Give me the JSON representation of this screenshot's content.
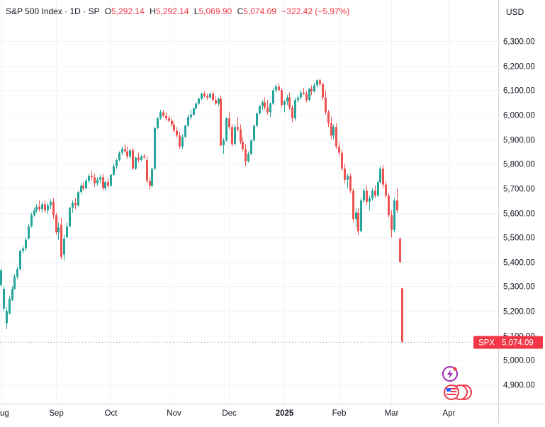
{
  "legend": {
    "symbol": "S&P 500 Index · 1D · SP",
    "o_label": "O",
    "o": "5,292.14",
    "h_label": "H",
    "h": "5,292.14",
    "l_label": "L",
    "l": "5,069.90",
    "c_label": "C",
    "c": "5,074.09",
    "change": "−322.42 (−5.97%)"
  },
  "currency": "USD",
  "price_badge": {
    "ticker": "SPX",
    "value": "5,074.09"
  },
  "icons": [
    "lightning-icon",
    "us-flag-events-icon"
  ],
  "colors": {
    "up": "#26a69a",
    "down": "#ef5350",
    "badge": "#f23645",
    "grid": "#f0f3fa"
  },
  "chart_data": {
    "type": "candlestick",
    "ylim": [
      4800,
      6360
    ],
    "y_ticks": [
      {
        "value": 6300,
        "label": "6,300.00"
      },
      {
        "value": 6200,
        "label": "6,200.00"
      },
      {
        "value": 6100,
        "label": "6,100.00"
      },
      {
        "value": 6000,
        "label": "6,000.00"
      },
      {
        "value": 5900,
        "label": "5,900.00"
      },
      {
        "value": 5800,
        "label": "5,800.00"
      },
      {
        "value": 5700,
        "label": "5,700.00"
      },
      {
        "value": 5600,
        "label": "5,600.00"
      },
      {
        "value": 5500,
        "label": "5,500.00"
      },
      {
        "value": 5400,
        "label": "5,400.00"
      },
      {
        "value": 5300,
        "label": "5,300.00"
      },
      {
        "value": 5200,
        "label": "5,200.00"
      },
      {
        "value": 5100,
        "label": "5,100.00"
      },
      {
        "value": 5000,
        "label": "5,000.00"
      },
      {
        "value": 4900,
        "label": "4,900.00"
      }
    ],
    "x_ticks": [
      {
        "label": "ug",
        "index": 0,
        "bold": false
      },
      {
        "label": "Sep",
        "index": 20,
        "bold": false
      },
      {
        "label": "Oct",
        "index": 40,
        "bold": false
      },
      {
        "label": "Nov",
        "index": 63,
        "bold": false
      },
      {
        "label": "Dec",
        "index": 83,
        "bold": false
      },
      {
        "label": "2025",
        "index": 103,
        "bold": true
      },
      {
        "label": "Feb",
        "index": 123,
        "bold": false
      },
      {
        "label": "Mar",
        "index": 142,
        "bold": false
      },
      {
        "label": "Apr",
        "index": 163,
        "bold": false
      }
    ],
    "candles": [
      [
        5305,
        5375,
        5300,
        5365
      ],
      [
        5210,
        5300,
        5200,
        5290
      ],
      [
        5150,
        5215,
        5125,
        5200
      ],
      [
        5190,
        5260,
        5185,
        5250
      ],
      [
        5245,
        5300,
        5240,
        5290
      ],
      [
        5290,
        5350,
        5285,
        5340
      ],
      [
        5340,
        5380,
        5330,
        5370
      ],
      [
        5370,
        5450,
        5365,
        5445
      ],
      [
        5445,
        5465,
        5435,
        5455
      ],
      [
        5455,
        5500,
        5445,
        5490
      ],
      [
        5495,
        5555,
        5490,
        5545
      ],
      [
        5545,
        5600,
        5540,
        5590
      ],
      [
        5590,
        5620,
        5585,
        5610
      ],
      [
        5610,
        5635,
        5600,
        5625
      ],
      [
        5625,
        5650,
        5605,
        5615
      ],
      [
        5615,
        5645,
        5600,
        5635
      ],
      [
        5635,
        5650,
        5600,
        5610
      ],
      [
        5610,
        5640,
        5595,
        5630
      ],
      [
        5630,
        5655,
        5615,
        5645
      ],
      [
        5645,
        5660,
        5575,
        5590
      ],
      [
        5590,
        5600,
        5510,
        5520
      ],
      [
        5520,
        5560,
        5490,
        5540
      ],
      [
        5550,
        5580,
        5410,
        5420
      ],
      [
        5430,
        5510,
        5405,
        5495
      ],
      [
        5500,
        5560,
        5495,
        5545
      ],
      [
        5545,
        5625,
        5540,
        5620
      ],
      [
        5620,
        5650,
        5600,
        5640
      ],
      [
        5640,
        5660,
        5615,
        5630
      ],
      [
        5630,
        5690,
        5625,
        5685
      ],
      [
        5685,
        5720,
        5675,
        5710
      ],
      [
        5710,
        5725,
        5690,
        5700
      ],
      [
        5700,
        5740,
        5695,
        5730
      ],
      [
        5730,
        5760,
        5720,
        5750
      ],
      [
        5750,
        5770,
        5735,
        5745
      ],
      [
        5745,
        5760,
        5705,
        5720
      ],
      [
        5720,
        5745,
        5710,
        5735
      ],
      [
        5735,
        5755,
        5720,
        5745
      ],
      [
        5745,
        5760,
        5690,
        5700
      ],
      [
        5700,
        5730,
        5690,
        5725
      ],
      [
        5725,
        5740,
        5700,
        5710
      ],
      [
        5710,
        5760,
        5705,
        5755
      ],
      [
        5755,
        5800,
        5750,
        5790
      ],
      [
        5790,
        5820,
        5780,
        5815
      ],
      [
        5815,
        5850,
        5810,
        5845
      ],
      [
        5845,
        5870,
        5835,
        5860
      ],
      [
        5860,
        5880,
        5845,
        5850
      ],
      [
        5850,
        5870,
        5820,
        5830
      ],
      [
        5830,
        5860,
        5820,
        5855
      ],
      [
        5855,
        5865,
        5775,
        5780
      ],
      [
        5780,
        5830,
        5775,
        5825
      ],
      [
        5825,
        5845,
        5805,
        5815
      ],
      [
        5815,
        5835,
        5810,
        5830
      ],
      [
        5830,
        5840,
        5820,
        5825
      ],
      [
        5815,
        5830,
        5720,
        5730
      ],
      [
        5730,
        5745,
        5695,
        5710
      ],
      [
        5710,
        5785,
        5705,
        5780
      ],
      [
        5780,
        5950,
        5775,
        5945
      ],
      [
        5945,
        5990,
        5940,
        5985
      ],
      [
        5985,
        6020,
        5980,
        6010
      ],
      [
        6010,
        6020,
        5990,
        5995
      ],
      [
        5995,
        6010,
        5975,
        5985
      ],
      [
        5985,
        5995,
        5970,
        5975
      ],
      [
        5975,
        5985,
        5950,
        5960
      ],
      [
        5960,
        5975,
        5925,
        5935
      ],
      [
        5935,
        5950,
        5905,
        5915
      ],
      [
        5915,
        5930,
        5860,
        5870
      ],
      [
        5870,
        5920,
        5860,
        5910
      ],
      [
        5910,
        5960,
        5905,
        5955
      ],
      [
        5955,
        6000,
        5950,
        5990
      ],
      [
        5990,
        6020,
        5980,
        6000
      ],
      [
        6000,
        6030,
        5995,
        6025
      ],
      [
        6025,
        6050,
        6020,
        6045
      ],
      [
        6045,
        6070,
        6040,
        6065
      ],
      [
        6065,
        6090,
        6060,
        6085
      ],
      [
        6085,
        6095,
        6070,
        6075
      ],
      [
        6075,
        6085,
        6060,
        6070
      ],
      [
        6070,
        6090,
        6065,
        6085
      ],
      [
        6085,
        6095,
        6055,
        6060
      ],
      [
        6060,
        6075,
        6040,
        6045
      ],
      [
        6045,
        6070,
        6035,
        6065
      ],
      [
        6065,
        6080,
        5870,
        5875
      ],
      [
        5875,
        5905,
        5840,
        5895
      ],
      [
        5895,
        5990,
        5890,
        5985
      ],
      [
        5985,
        6010,
        5940,
        5950
      ],
      [
        5950,
        5960,
        5870,
        5880
      ],
      [
        5880,
        5960,
        5875,
        5950
      ],
      [
        5950,
        5990,
        5930,
        5940
      ],
      [
        5940,
        5960,
        5880,
        5890
      ],
      [
        5890,
        5910,
        5850,
        5860
      ],
      [
        5860,
        5880,
        5790,
        5810
      ],
      [
        5810,
        5850,
        5805,
        5840
      ],
      [
        5840,
        5900,
        5835,
        5895
      ],
      [
        5895,
        5960,
        5890,
        5955
      ],
      [
        5955,
        6010,
        5950,
        6005
      ],
      [
        6005,
        6040,
        6000,
        6035
      ],
      [
        6035,
        6060,
        6020,
        6050
      ],
      [
        6050,
        6070,
        6020,
        6030
      ],
      [
        6030,
        6060,
        6000,
        6010
      ],
      [
        6010,
        6050,
        5990,
        6045
      ],
      [
        6045,
        6110,
        6040,
        6100
      ],
      [
        6100,
        6125,
        6090,
        6115
      ],
      [
        6115,
        6130,
        6095,
        6100
      ],
      [
        6100,
        6110,
        6030,
        6040
      ],
      [
        6040,
        6060,
        6010,
        6055
      ],
      [
        6055,
        6080,
        6040,
        6070
      ],
      [
        6070,
        6090,
        6020,
        6030
      ],
      [
        6030,
        6040,
        5970,
        5985
      ],
      [
        5985,
        6070,
        5975,
        6060
      ],
      [
        6060,
        6080,
        6050,
        6070
      ],
      [
        6070,
        6100,
        6060,
        6090
      ],
      [
        6090,
        6110,
        6080,
        6085
      ],
      [
        6085,
        6095,
        6050,
        6060
      ],
      [
        6060,
        6110,
        6055,
        6105
      ],
      [
        6105,
        6120,
        6080,
        6095
      ],
      [
        6095,
        6130,
        6090,
        6120
      ],
      [
        6120,
        6145,
        6110,
        6140
      ],
      [
        6140,
        6148,
        6115,
        6125
      ],
      [
        6125,
        6130,
        6060,
        6070
      ],
      [
        6070,
        6100,
        6000,
        6010
      ],
      [
        6010,
        6020,
        5950,
        5965
      ],
      [
        5965,
        5990,
        5900,
        5915
      ],
      [
        5915,
        5960,
        5900,
        5950
      ],
      [
        5950,
        5965,
        5860,
        5870
      ],
      [
        5870,
        5890,
        5830,
        5845
      ],
      [
        5845,
        5860,
        5770,
        5780
      ],
      [
        5780,
        5800,
        5720,
        5735
      ],
      [
        5735,
        5760,
        5700,
        5750
      ],
      [
        5750,
        5760,
        5680,
        5690
      ],
      [
        5690,
        5700,
        5560,
        5575
      ],
      [
        5575,
        5620,
        5540,
        5600
      ],
      [
        5600,
        5620,
        5510,
        5525
      ],
      [
        5525,
        5660,
        5520,
        5650
      ],
      [
        5650,
        5700,
        5640,
        5690
      ],
      [
        5690,
        5710,
        5630,
        5645
      ],
      [
        5645,
        5670,
        5610,
        5660
      ],
      [
        5660,
        5700,
        5650,
        5690
      ],
      [
        5690,
        5710,
        5660,
        5670
      ],
      [
        5670,
        5730,
        5665,
        5725
      ],
      [
        5725,
        5790,
        5720,
        5780
      ],
      [
        5780,
        5795,
        5700,
        5715
      ],
      [
        5715,
        5730,
        5660,
        5670
      ],
      [
        5670,
        5680,
        5580,
        5590
      ],
      [
        5590,
        5610,
        5500,
        5530
      ],
      [
        5530,
        5660,
        5520,
        5650
      ],
      [
        5650,
        5700,
        5600,
        5610
      ],
      [
        5495,
        5500,
        5395,
        5400
      ],
      [
        5292,
        5292,
        5070,
        5074
      ]
    ]
  }
}
